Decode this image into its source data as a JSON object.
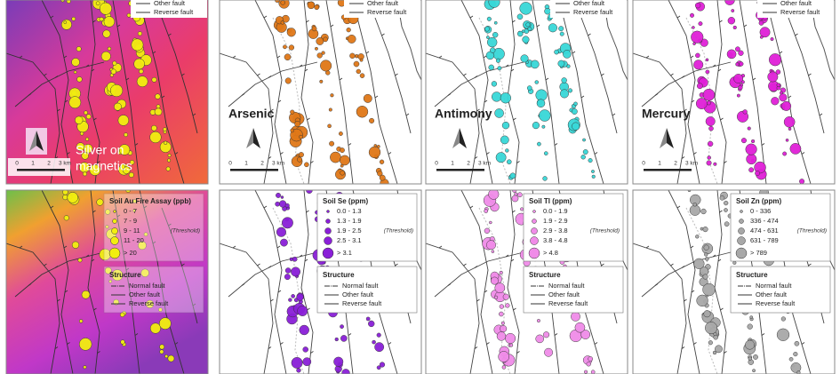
{
  "top_panels": [
    {
      "label_lines": [
        "Silver on",
        "magnetics"
      ],
      "color": "#f2ee10",
      "legend": [
        "Other fault",
        "Reverse fault"
      ],
      "scale": [
        "0",
        "1",
        "2",
        "3 km"
      ]
    },
    {
      "label_lines": [
        "Arsenic"
      ],
      "color": "#e07818",
      "legend": [
        "Other fault",
        "Reverse fault"
      ],
      "scale": [
        "0",
        "1",
        "2",
        "3 km"
      ]
    },
    {
      "label_lines": [
        "Antimony"
      ],
      "color": "#38d8d8",
      "legend": [
        "Other fault",
        "Reverse fault"
      ],
      "scale": [
        "0",
        "1",
        "2",
        "3 km"
      ]
    },
    {
      "label_lines": [
        "Mercury"
      ],
      "color": "#e020d8",
      "legend": [
        "Other fault",
        "Reverse fault"
      ],
      "scale": [
        "0",
        "1",
        "2",
        "3 km"
      ]
    }
  ],
  "bottom_panels": [
    {
      "legend_title": "Soil Au Fire Assay (ppb)",
      "color": "#f2ee10",
      "classes": [
        "0 - 7",
        "7 - 9",
        "9 - 11",
        "11 - 20",
        "> 20"
      ],
      "threshold": "(Threshold)",
      "structure_title": "Structure",
      "structure": [
        "Normal fault",
        "Other fault",
        "Reverse fault"
      ]
    },
    {
      "legend_title": "Soil Se (ppm)",
      "color": "#8a1fd8",
      "classes": [
        "0.0 - 1.3",
        "1.3 - 1.9",
        "1.9 - 2.5",
        "2.5 - 3.1",
        "> 3.1"
      ],
      "threshold": "(Threshold)",
      "structure_title": "Structure",
      "structure": [
        "Normal fault",
        "Other fault",
        "Reverse fault"
      ]
    },
    {
      "legend_title": "Soil Tl (ppm)",
      "color": "#f08ce8",
      "classes": [
        "0.0 - 1.9",
        "1.9 - 2.9",
        "2.9 - 3.8",
        "3.8 - 4.8",
        "> 4.8"
      ],
      "threshold": "(Threshold)",
      "structure_title": "Structure",
      "structure": [
        "Normal fault",
        "Other fault",
        "Reverse fault"
      ]
    },
    {
      "legend_title": "Soil Zn (ppm)",
      "color": "#a8a8a8",
      "classes": [
        "0 - 336",
        "336 - 474",
        "474 - 631",
        "631 - 789",
        "> 789"
      ],
      "threshold": "(Threshold)",
      "structure_title": "Structure",
      "structure": [
        "Normal fault",
        "Other fault",
        "Reverse fault"
      ]
    }
  ]
}
